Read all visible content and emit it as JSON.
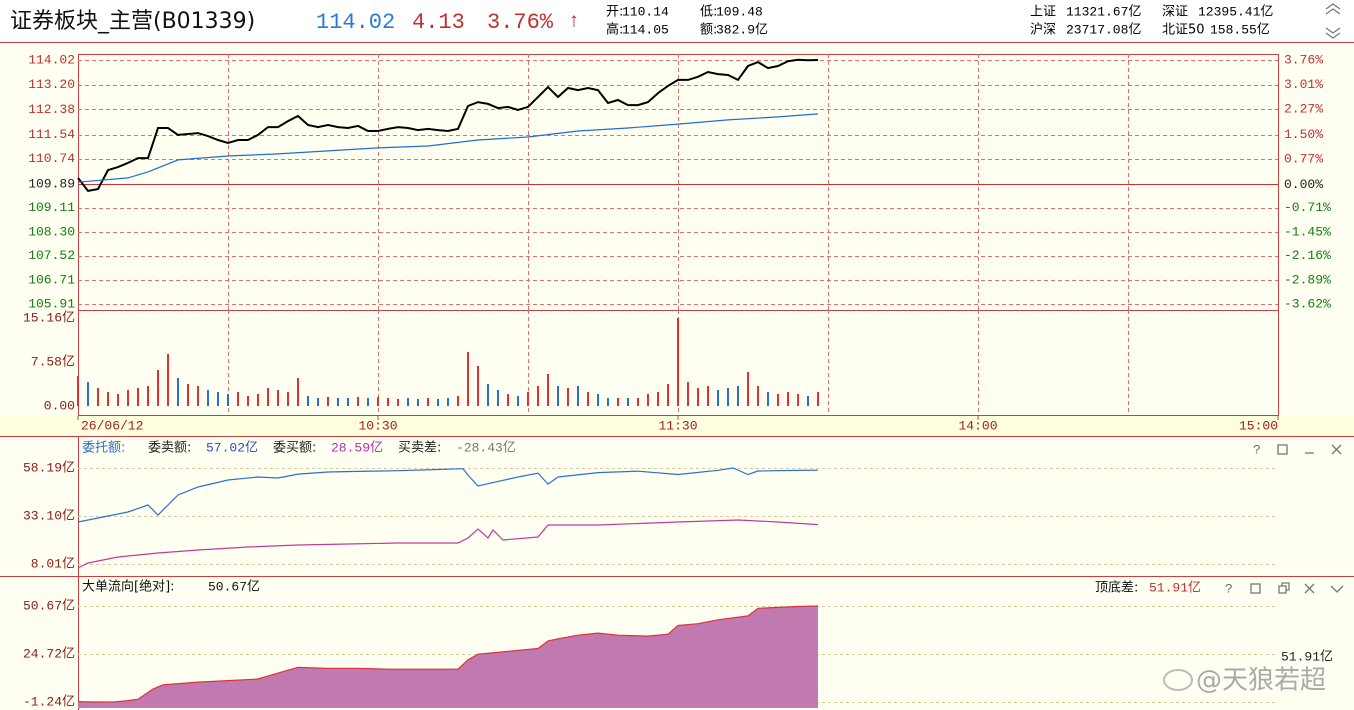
{
  "header": {
    "title": "证券板块_主营(B01339)",
    "price": "114.02",
    "change": "4.13",
    "change_pct": "3.76%",
    "arrow": "↑",
    "stats": [
      {
        "label": "开:",
        "value": "110.14"
      },
      {
        "label": "低:",
        "value": "109.48"
      },
      {
        "label": "高:",
        "value": "114.05"
      },
      {
        "label": "额:",
        "value": "382.9亿"
      }
    ],
    "indices": [
      {
        "label": "上证",
        "value": "11321.67亿"
      },
      {
        "label": "深证",
        "value": "12395.41亿"
      },
      {
        "label": "沪深",
        "value": "23717.08亿"
      },
      {
        "label": "北证50",
        "value": "158.55亿"
      }
    ]
  },
  "chart_data": [
    {
      "type": "line",
      "xlim": [
        0,
        240
      ],
      "xgrid": [
        30,
        60,
        90,
        120,
        150,
        180,
        210
      ],
      "grid": true,
      "ylim": [
        105.91,
        114.02
      ],
      "yticks": [
        114.02,
        {
          "value": 113.2,
          "label": "113.20"
        },
        112.38,
        111.54,
        110.74,
        109.89,
        109.11,
        {
          "value": 108.3,
          "label": "108.30"
        },
        107.52,
        106.71,
        105.91
      ],
      "y2lim": [
        -3.62,
        3.76
      ],
      "y2ticks": [
        {
          "value": 3.76,
          "label": "3.76%"
        },
        {
          "value": 3.01,
          "label": "3.01%"
        },
        {
          "value": 2.27,
          "label": "2.27%"
        },
        {
          "value": 1.5,
          "label": "1.50%"
        },
        {
          "value": 0.77,
          "label": "0.77%"
        },
        {
          "value": 0,
          "label": "0.00%"
        },
        {
          "value": -0.71,
          "label": "-0.71%"
        },
        {
          "value": -1.45,
          "label": "-1.45%"
        },
        {
          "value": -2.16,
          "label": "-2.16%"
        },
        {
          "value": -2.89,
          "label": "-2.89%"
        },
        {
          "value": -3.62,
          "label": "-3.62%"
        }
      ],
      "series": [
        {
          "color": "#000000",
          "x": [
            0,
            2,
            4,
            6,
            8,
            10,
            12,
            14,
            16,
            18,
            20,
            22,
            24,
            26,
            28,
            30,
            32,
            34,
            36,
            38,
            40,
            42,
            44,
            46,
            48,
            50,
            52,
            54,
            56,
            58,
            60,
            62,
            64,
            66,
            68,
            70,
            72,
            74,
            76,
            78,
            80,
            82,
            84,
            86,
            88,
            90,
            92,
            94,
            96,
            98,
            100,
            102,
            104,
            106,
            108,
            110,
            112,
            114,
            116,
            118,
            120,
            122,
            124,
            126,
            128,
            130,
            132,
            134,
            136,
            138,
            140,
            142,
            144,
            146,
            148
          ],
          "values": [
            110.1,
            109.67,
            109.73,
            110.36,
            110.46,
            110.6,
            110.76,
            110.76,
            111.76,
            111.76,
            111.53,
            111.56,
            111.59,
            111.49,
            111.36,
            111.26,
            111.36,
            111.36,
            111.53,
            111.79,
            111.79,
            111.99,
            112.16,
            111.86,
            111.79,
            111.86,
            111.79,
            111.76,
            111.83,
            111.66,
            111.66,
            111.73,
            111.79,
            111.76,
            111.69,
            111.73,
            111.69,
            111.66,
            111.73,
            112.49,
            112.62,
            112.56,
            112.42,
            112.46,
            112.36,
            112.46,
            112.79,
            113.12,
            112.79,
            113.09,
            113.02,
            113.09,
            113.02,
            112.59,
            112.69,
            112.52,
            112.52,
            112.62,
            112.92,
            113.16,
            113.36,
            113.36,
            113.46,
            113.62,
            113.55,
            113.52,
            113.36,
            113.82,
            113.95,
            113.75,
            113.82,
            113.98,
            114.03,
            114.01,
            114.02
          ]
        },
        {
          "color": "#1e6fd0",
          "x": [
            0,
            10,
            14,
            20,
            30,
            40,
            50,
            60,
            70,
            80,
            90,
            100,
            110,
            120,
            130,
            140,
            148
          ],
          "values": [
            109.96,
            110.1,
            110.3,
            110.7,
            110.83,
            110.9,
            111.0,
            111.1,
            111.16,
            111.36,
            111.46,
            111.66,
            111.76,
            111.89,
            112.03,
            112.13,
            112.23
          ]
        }
      ]
    },
    {
      "type": "bar",
      "xlim": [
        0,
        240
      ],
      "xgrid": [
        30,
        60,
        90,
        120,
        150,
        180,
        210
      ],
      "xticks": [
        {
          "value": 0,
          "label": "26/06/12"
        },
        {
          "value": 60,
          "label": "10:30"
        },
        {
          "value": 120,
          "label": "11:30"
        },
        {
          "value": 180,
          "label": "14:00"
        },
        {
          "value": 240,
          "label": "15:00"
        }
      ],
      "ylim": [
        0,
        15.16
      ],
      "yticks": [
        {
          "value": 15.16,
          "label": "15.16亿"
        },
        {
          "value": 7.58,
          "label": "7.58亿"
        },
        {
          "value": 0,
          "label": "0.00"
        }
      ],
      "up_color": "#e03030",
      "down_color": "#2a6fd6",
      "x": [
        0,
        2,
        4,
        6,
        8,
        10,
        12,
        14,
        16,
        18,
        20,
        22,
        24,
        26,
        28,
        30,
        32,
        34,
        36,
        38,
        40,
        42,
        44,
        46,
        48,
        50,
        52,
        54,
        56,
        58,
        60,
        62,
        64,
        66,
        68,
        70,
        72,
        74,
        76,
        78,
        80,
        82,
        84,
        86,
        88,
        90,
        92,
        94,
        96,
        98,
        100,
        102,
        104,
        106,
        108,
        110,
        112,
        114,
        116,
        118,
        120,
        122,
        124,
        126,
        128,
        130,
        132,
        134,
        136,
        138,
        140,
        142,
        144,
        146,
        148
      ],
      "values": [
        5.17,
        4.14,
        3.1,
        2.41,
        2.07,
        2.76,
        3.1,
        3.45,
        6.2,
        8.96,
        4.82,
        3.79,
        3.45,
        2.76,
        2.41,
        2.07,
        2.41,
        1.72,
        2.07,
        3.1,
        2.76,
        2.41,
        4.82,
        1.72,
        1.38,
        1.55,
        1.38,
        1.38,
        1.55,
        1.38,
        1.55,
        1.38,
        1.21,
        1.38,
        1.21,
        1.38,
        1.21,
        1.38,
        1.72,
        9.31,
        6.89,
        3.79,
        2.76,
        2.07,
        1.72,
        2.41,
        3.45,
        5.51,
        3.45,
        3.1,
        3.45,
        2.41,
        2.07,
        1.38,
        1.38,
        1.38,
        1.38,
        2.07,
        2.41,
        3.79,
        15.16,
        4.14,
        3.1,
        3.45,
        2.76,
        3.1,
        3.45,
        5.86,
        3.45,
        2.41,
        2.07,
        2.41,
        2.07,
        1.72,
        2.41
      ]
    },
    {
      "type": "line",
      "title": "委托额:",
      "xlim": [
        0,
        240
      ],
      "grid": true,
      "ylim": [
        8.01,
        58.19
      ],
      "yticks": [
        {
          "value": 58.19,
          "label": "58.19亿"
        },
        {
          "value": 33.1,
          "label": "33.10亿"
        },
        {
          "value": 8.01,
          "label": "8.01亿"
        }
      ],
      "series": [
        {
          "name": "委卖额:",
          "current_label": "57.02亿",
          "color": "#2a6fd6",
          "x": [
            0,
            4,
            10,
            14,
            16,
            20,
            24,
            30,
            36,
            40,
            44,
            50,
            56,
            64,
            72,
            77,
            78,
            80,
            82,
            88,
            92,
            94,
            96,
            104,
            112,
            120,
            128,
            131,
            134,
            136,
            142,
            148
          ],
          "values": [
            29.96,
            32.05,
            35.19,
            38.85,
            33.62,
            44.08,
            48.26,
            51.92,
            53.5,
            52.96,
            55.0,
            56.1,
            56.4,
            56.8,
            57.4,
            57.8,
            54.5,
            48.8,
            50.0,
            53.5,
            55.5,
            49.8,
            53.5,
            55.8,
            56.5,
            54.8,
            57.0,
            58.2,
            54.8,
            56.6,
            56.9,
            57.02
          ]
        },
        {
          "name": "委买额:",
          "current_label": "28.59亿",
          "color": "#c23a9e",
          "x": [
            0,
            2,
            8,
            16,
            24,
            34,
            44,
            54,
            64,
            76,
            78,
            80,
            82,
            83,
            85,
            92,
            94,
            104,
            120,
            132,
            140,
            148
          ],
          "values": [
            5.92,
            8.53,
            11.67,
            13.76,
            15.33,
            16.9,
            17.94,
            18.46,
            18.99,
            18.99,
            21.6,
            26.31,
            21.6,
            25.78,
            20.56,
            22.12,
            28.4,
            28.4,
            29.96,
            31.01,
            29.96,
            28.59
          ]
        }
      ],
      "annotation": {
        "label": "买卖差:",
        "value": "-28.43亿"
      }
    },
    {
      "type": "area",
      "title": "大单流向[绝对]:",
      "title_value": "50.67亿",
      "xlim": [
        0,
        240
      ],
      "grid": true,
      "ylim": [
        -1.24,
        50.67
      ],
      "yticks": [
        {
          "value": 50.67,
          "label": "50.67亿"
        },
        {
          "value": 24.72,
          "label": "24.72亿"
        },
        {
          "value": -1.24,
          "label": "-1.24亿"
        }
      ],
      "series": [
        {
          "color": "#c07ab0",
          "line_color": "#e03040",
          "x": [
            0,
            3.4,
            7.4,
            10,
            12,
            15,
            17,
            24,
            32,
            36,
            40,
            44,
            50,
            56,
            62,
            68,
            76,
            78,
            80,
            84,
            88,
            92,
            94,
            96,
            100,
            104,
            108,
            114,
            118,
            120,
            124,
            128,
            134,
            136,
            140,
            144,
            148
          ],
          "values": [
            -1,
            -1.24,
            -1.2,
            -0.5,
            0.2,
            5.8,
            8.0,
            9.5,
            10.6,
            11.2,
            14.4,
            17.5,
            17.0,
            17.0,
            16.5,
            16.5,
            16.5,
            21.5,
            24.6,
            25.6,
            26.7,
            27.7,
            31.8,
            32.9,
            34.9,
            36.0,
            34.9,
            34.4,
            35.4,
            40.1,
            41.1,
            43.2,
            45.3,
            49.4,
            49.9,
            50.4,
            50.67
          ]
        }
      ],
      "annotation": {
        "label": "顶底差:",
        "value": "51.91亿"
      }
    }
  ],
  "watermark": "@天狼若超"
}
